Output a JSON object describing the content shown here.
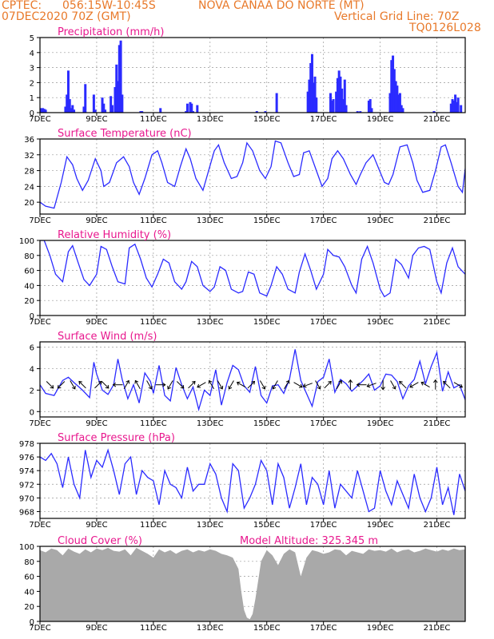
{
  "header": {
    "source": "CPTEC:",
    "coords": "056:15W-10:45S",
    "location": "NOVA CANAA DO NORTE (MT)",
    "run": "07DEC2020 70Z (GMT)",
    "grid_note": "Vertical Grid Line: 70Z",
    "code": "TQ0126L028"
  },
  "colors": {
    "line": "#2b2bff",
    "panel_title": "#e8188e",
    "header": "#e8792a",
    "cloud": "#a9a9a9",
    "grid": "#999999"
  },
  "x_axis": {
    "day_min": 7,
    "day_max": 22,
    "ticks": [
      {
        "d": 7,
        "label": "7DEC"
      },
      {
        "d": 9,
        "label": "9DEC"
      },
      {
        "d": 11,
        "label": "11DEC"
      },
      {
        "d": 13,
        "label": "13DEC"
      },
      {
        "d": 15,
        "label": "15DEC"
      },
      {
        "d": 17,
        "label": "17DEC"
      },
      {
        "d": 19,
        "label": "19DEC"
      },
      {
        "d": 21,
        "label": "21DEC"
      }
    ]
  },
  "chart_data": [
    {
      "id": "precip",
      "type": "bar",
      "title": "Precipitation (mm/h)",
      "ylim": [
        0,
        5
      ],
      "yticks": [
        0,
        1,
        2,
        3,
        4,
        5
      ],
      "grid": true,
      "x": [
        7.05,
        7.1,
        7.15,
        7.2,
        7.9,
        7.95,
        8.0,
        8.05,
        8.1,
        8.15,
        8.2,
        8.55,
        8.6,
        8.9,
        8.95,
        9.2,
        9.25,
        9.3,
        9.5,
        9.55,
        9.65,
        9.7,
        9.75,
        9.8,
        9.85,
        9.9,
        10.55,
        10.6,
        11.25,
        12.15,
        12.2,
        12.3,
        12.35,
        12.4,
        12.55,
        14.65,
        14.95,
        15.35,
        16.45,
        16.5,
        16.55,
        16.6,
        16.65,
        16.7,
        16.75,
        17.25,
        17.3,
        17.35,
        17.45,
        17.5,
        17.55,
        17.6,
        17.65,
        17.7,
        17.75,
        17.8,
        18.2,
        18.3,
        18.6,
        18.65,
        18.7,
        19.35,
        19.4,
        19.45,
        19.5,
        19.55,
        19.6,
        19.65,
        19.7,
        19.75,
        19.8,
        20.9,
        21.5,
        21.55,
        21.6,
        21.65,
        21.7,
        21.75,
        21.85
      ],
      "values": [
        0.3,
        0.3,
        0.25,
        0.2,
        0.4,
        1.2,
        2.8,
        0.9,
        0.3,
        0.5,
        0.2,
        0.4,
        1.9,
        1.2,
        0.2,
        1.0,
        0.6,
        0.2,
        1.1,
        0.5,
        1.7,
        3.2,
        2.1,
        4.5,
        4.8,
        1.2,
        0.1,
        0.1,
        0.3,
        0.1,
        0.6,
        0.7,
        0.6,
        0.1,
        0.5,
        0.1,
        0.1,
        1.3,
        1.4,
        2.2,
        3.3,
        3.9,
        2.0,
        2.4,
        1.0,
        1.3,
        0.8,
        0.9,
        1.4,
        2.3,
        2.8,
        2.4,
        1.6,
        0.9,
        2.2,
        0.5,
        0.1,
        0.1,
        0.8,
        0.9,
        0.3,
        1.3,
        3.5,
        3.8,
        2.9,
        2.1,
        1.8,
        1.2,
        1.3,
        0.5,
        0.3,
        0.1,
        0.6,
        0.9,
        0.8,
        1.2,
        0.7,
        1.0,
        0.5
      ]
    },
    {
      "id": "temp",
      "type": "line",
      "title": "Surface Temperature (nC)",
      "ylim": [
        17,
        36
      ],
      "yticks": [
        20,
        24,
        28,
        32,
        36
      ],
      "grid": true,
      "x": [
        7.0,
        7.2,
        7.5,
        7.75,
        7.95,
        8.15,
        8.3,
        8.5,
        8.7,
        8.95,
        9.15,
        9.25,
        9.45,
        9.7,
        9.95,
        10.15,
        10.3,
        10.5,
        10.7,
        10.95,
        11.15,
        11.3,
        11.5,
        11.75,
        11.95,
        12.15,
        12.3,
        12.5,
        12.75,
        12.95,
        13.15,
        13.3,
        13.5,
        13.75,
        13.95,
        14.15,
        14.3,
        14.5,
        14.75,
        14.95,
        15.15,
        15.3,
        15.5,
        15.75,
        15.95,
        16.15,
        16.3,
        16.5,
        16.75,
        16.95,
        17.15,
        17.3,
        17.5,
        17.7,
        17.95,
        18.15,
        18.3,
        18.5,
        18.75,
        18.95,
        19.15,
        19.3,
        19.45,
        19.7,
        19.95,
        20.15,
        20.3,
        20.5,
        20.75,
        20.95,
        21.15,
        21.3,
        21.5,
        21.75,
        21.9,
        22.0
      ],
      "values": [
        20.0,
        19.0,
        18.5,
        25.0,
        31.5,
        29.5,
        26.0,
        23.0,
        25.5,
        31.0,
        28.0,
        24.0,
        25.0,
        30.0,
        31.5,
        29.0,
        25.0,
        22.0,
        26.0,
        32.0,
        33.0,
        30.0,
        25.0,
        24.0,
        29.0,
        33.5,
        31.0,
        26.0,
        23.0,
        28.0,
        33.0,
        34.5,
        30.0,
        26.0,
        26.5,
        30.0,
        35.0,
        33.0,
        28.0,
        26.0,
        29.0,
        35.5,
        35.0,
        30.0,
        26.5,
        27.0,
        32.5,
        33.0,
        28.0,
        24.0,
        26.0,
        31.0,
        33.0,
        31.0,
        27.0,
        24.5,
        27.0,
        30.0,
        32.0,
        28.5,
        25.0,
        24.5,
        27.0,
        34.0,
        34.5,
        30.0,
        25.5,
        22.5,
        23.0,
        28.0,
        34.0,
        34.5,
        30.0,
        24.0,
        22.5,
        28.5
      ]
    },
    {
      "id": "rh",
      "type": "line",
      "title": "Relative Humidity (%)",
      "ylim": [
        0,
        100
      ],
      "yticks": [
        0,
        20,
        40,
        60,
        80,
        100
      ],
      "grid": true,
      "x": [
        7.0,
        7.15,
        7.35,
        7.55,
        7.8,
        8.0,
        8.15,
        8.35,
        8.55,
        8.75,
        9.0,
        9.15,
        9.35,
        9.55,
        9.75,
        10.0,
        10.15,
        10.35,
        10.55,
        10.75,
        10.95,
        11.15,
        11.35,
        11.55,
        11.75,
        12.0,
        12.15,
        12.35,
        12.55,
        12.75,
        13.0,
        13.15,
        13.35,
        13.55,
        13.75,
        14.0,
        14.15,
        14.35,
        14.55,
        14.75,
        15.0,
        15.15,
        15.35,
        15.55,
        15.75,
        16.0,
        16.15,
        16.35,
        16.55,
        16.75,
        17.0,
        17.15,
        17.35,
        17.55,
        17.75,
        18.0,
        18.15,
        18.35,
        18.55,
        18.75,
        19.0,
        19.15,
        19.35,
        19.55,
        19.75,
        20.0,
        20.15,
        20.35,
        20.55,
        20.75,
        21.0,
        21.15,
        21.35,
        21.55,
        21.75,
        22.0
      ],
      "values": [
        100.0,
        100.0,
        80.0,
        55.0,
        45.0,
        85.0,
        93.0,
        70.0,
        48.0,
        40.0,
        55.0,
        92.0,
        88.0,
        65.0,
        45.0,
        42.0,
        90.0,
        95.0,
        75.0,
        50.0,
        38.0,
        55.0,
        75.0,
        70.0,
        45.0,
        35.0,
        45.0,
        72.0,
        65.0,
        40.0,
        32.0,
        38.0,
        65.0,
        60.0,
        35.0,
        30.0,
        32.0,
        58.0,
        55.0,
        30.0,
        26.0,
        40.0,
        65.0,
        55.0,
        35.0,
        30.0,
        58.0,
        82.0,
        60.0,
        35.0,
        55.0,
        88.0,
        80.0,
        78.0,
        65.0,
        40.0,
        30.0,
        75.0,
        92.0,
        70.0,
        35.0,
        25.0,
        30.0,
        75.0,
        68.0,
        50.0,
        80.0,
        90.0,
        92.0,
        88.0,
        45.0,
        30.0,
        70.0,
        90.0,
        65.0,
        55.0
      ]
    },
    {
      "id": "wind",
      "type": "line",
      "title": "Surface Wind (m/s)",
      "ylim": [
        -0.5,
        6.5
      ],
      "yticks": [
        0,
        2,
        4,
        6
      ],
      "grid": true,
      "x": [
        7.0,
        7.2,
        7.5,
        7.8,
        8.0,
        8.2,
        8.5,
        8.75,
        8.9,
        9.0,
        9.2,
        9.4,
        9.6,
        9.75,
        9.9,
        10.1,
        10.3,
        10.5,
        10.7,
        10.9,
        11.0,
        11.2,
        11.4,
        11.6,
        11.8,
        12.0,
        12.2,
        12.4,
        12.6,
        12.8,
        13.0,
        13.2,
        13.4,
        13.6,
        13.8,
        14.0,
        14.2,
        14.4,
        14.6,
        14.8,
        15.0,
        15.2,
        15.4,
        15.6,
        15.8,
        16.0,
        16.2,
        16.4,
        16.6,
        16.8,
        17.0,
        17.2,
        17.4,
        17.6,
        17.8,
        18.0,
        18.2,
        18.4,
        18.6,
        18.8,
        19.0,
        19.2,
        19.4,
        19.6,
        19.8,
        20.0,
        20.2,
        20.4,
        20.6,
        20.8,
        21.0,
        21.2,
        21.4,
        21.6,
        21.8,
        22.0
      ],
      "values": [
        2.5,
        1.7,
        1.5,
        2.9,
        3.2,
        2.7,
        2.0,
        1.3,
        4.6,
        3.5,
        2.0,
        1.6,
        2.5,
        4.9,
        3.0,
        1.2,
        2.5,
        0.8,
        3.6,
        2.8,
        1.7,
        4.3,
        1.5,
        1.0,
        4.1,
        2.5,
        1.2,
        2.3,
        0.2,
        2.0,
        1.5,
        3.9,
        0.6,
        2.7,
        4.3,
        3.9,
        2.4,
        1.8,
        4.2,
        1.5,
        0.8,
        2.4,
        2.5,
        1.7,
        3.0,
        5.8,
        2.9,
        1.7,
        0.5,
        2.8,
        3.2,
        4.9,
        1.8,
        3.0,
        2.6,
        1.9,
        2.4,
        2.9,
        3.5,
        2.0,
        2.4,
        3.5,
        3.4,
        2.8,
        1.2,
        2.4,
        3.0,
        4.7,
        2.6,
        4.2,
        5.5,
        1.9,
        3.7,
        2.2,
        2.5,
        1.1
      ]
    },
    {
      "id": "pressure",
      "type": "line",
      "title": "Surface Pressure (hPa)",
      "ylim": [
        967,
        978
      ],
      "yticks": [
        968,
        970,
        972,
        974,
        976,
        978
      ],
      "grid": true,
      "x": [
        7.0,
        7.2,
        7.4,
        7.6,
        7.8,
        8.0,
        8.2,
        8.4,
        8.6,
        8.8,
        9.0,
        9.2,
        9.4,
        9.6,
        9.8,
        10.0,
        10.2,
        10.4,
        10.6,
        10.8,
        11.0,
        11.2,
        11.4,
        11.6,
        11.8,
        12.0,
        12.2,
        12.4,
        12.6,
        12.8,
        13.0,
        13.2,
        13.4,
        13.6,
        13.8,
        14.0,
        14.2,
        14.4,
        14.6,
        14.8,
        15.0,
        15.2,
        15.4,
        15.6,
        15.8,
        16.0,
        16.2,
        16.4,
        16.6,
        16.8,
        17.0,
        17.2,
        17.4,
        17.6,
        17.8,
        18.0,
        18.2,
        18.4,
        18.6,
        18.8,
        19.0,
        19.2,
        19.4,
        19.6,
        19.8,
        20.0,
        20.2,
        20.4,
        20.6,
        20.8,
        21.0,
        21.2,
        21.4,
        21.6,
        21.8,
        22.0
      ],
      "values": [
        976.0,
        975.5,
        976.5,
        975.0,
        971.5,
        976.0,
        972.0,
        970.0,
        977.0,
        973.0,
        975.5,
        974.5,
        977.0,
        974.0,
        970.5,
        975.0,
        976.0,
        970.5,
        974.0,
        973.0,
        972.5,
        969.0,
        974.0,
        972.0,
        971.5,
        970.0,
        974.5,
        971.0,
        972.0,
        972.0,
        975.0,
        973.5,
        970.0,
        968.0,
        975.0,
        974.0,
        968.5,
        970.0,
        972.0,
        975.5,
        974.0,
        969.0,
        975.0,
        973.0,
        968.5,
        971.5,
        975.0,
        969.0,
        973.0,
        972.0,
        969.0,
        974.0,
        968.5,
        972.0,
        971.0,
        970.0,
        974.0,
        971.0,
        968.0,
        968.5,
        974.0,
        971.0,
        969.0,
        972.5,
        970.5,
        968.5,
        973.5,
        970.0,
        968.0,
        970.0,
        974.5,
        969.0,
        971.5,
        967.5,
        973.5,
        971.0
      ]
    },
    {
      "id": "cloud",
      "type": "area",
      "title": "Cloud Cover (%)",
      "annotation": "Model Altitude: 325.345 m",
      "ylim": [
        0,
        100
      ],
      "yticks": [
        0,
        20,
        40,
        60,
        80,
        100
      ],
      "grid": true,
      "x": [
        7.0,
        7.2,
        7.4,
        7.6,
        7.8,
        8.0,
        8.2,
        8.4,
        8.6,
        8.8,
        9.0,
        9.2,
        9.4,
        9.6,
        9.8,
        10.0,
        10.2,
        10.4,
        10.6,
        10.8,
        11.0,
        11.2,
        11.4,
        11.6,
        11.8,
        12.0,
        12.2,
        12.4,
        12.6,
        12.8,
        13.0,
        13.2,
        13.4,
        13.6,
        13.8,
        14.0,
        14.1,
        14.2,
        14.3,
        14.4,
        14.5,
        14.6,
        14.7,
        14.8,
        15.0,
        15.2,
        15.4,
        15.6,
        15.8,
        16.0,
        16.2,
        16.4,
        16.6,
        16.8,
        17.0,
        17.2,
        17.4,
        17.6,
        17.8,
        18.0,
        18.2,
        18.4,
        18.6,
        18.8,
        19.0,
        19.2,
        19.4,
        19.6,
        19.8,
        20.0,
        20.2,
        20.4,
        20.6,
        20.8,
        21.0,
        21.2,
        21.4,
        21.6,
        21.8,
        22.0
      ],
      "values": [
        95,
        92,
        97,
        95,
        88,
        97,
        93,
        90,
        96,
        92,
        97,
        95,
        98,
        94,
        93,
        96,
        88,
        98,
        94,
        90,
        85,
        96,
        92,
        95,
        90,
        94,
        96,
        92,
        95,
        93,
        96,
        94,
        90,
        88,
        85,
        70,
        40,
        15,
        5,
        3,
        10,
        30,
        55,
        80,
        95,
        88,
        75,
        90,
        96,
        92,
        60,
        85,
        95,
        93,
        90,
        92,
        96,
        95,
        88,
        94,
        92,
        90,
        96,
        94,
        95,
        93,
        97,
        92,
        95,
        96,
        92,
        94,
        97,
        95,
        93,
        96,
        94,
        97,
        95,
        96
      ]
    }
  ],
  "wind_arrows": {
    "x": [
      7.35,
      7.75,
      8.15,
      8.5,
      9.05,
      9.3,
      9.75,
      10.05,
      10.45,
      10.85,
      11.25,
      11.6,
      11.95,
      12.35,
      12.7,
      13.05,
      13.35,
      13.75,
      14.1,
      14.45,
      14.85,
      15.3,
      15.7,
      16.1,
      16.45,
      16.8,
      17.15,
      17.55,
      17.95,
      18.35,
      18.7,
      19.1,
      19.45,
      19.8,
      20.2,
      20.6,
      20.95,
      21.35,
      21.75
    ],
    "dir": [
      315,
      225,
      300,
      135,
      45,
      315,
      180,
      60,
      120,
      300,
      0,
      240,
      315,
      45,
      210,
      120,
      300,
      240,
      150,
      45,
      300,
      240,
      60,
      330,
      200,
      300,
      45,
      60,
      90,
      180,
      200,
      270,
      300,
      135,
      210,
      150,
      90,
      135,
      330
    ]
  }
}
